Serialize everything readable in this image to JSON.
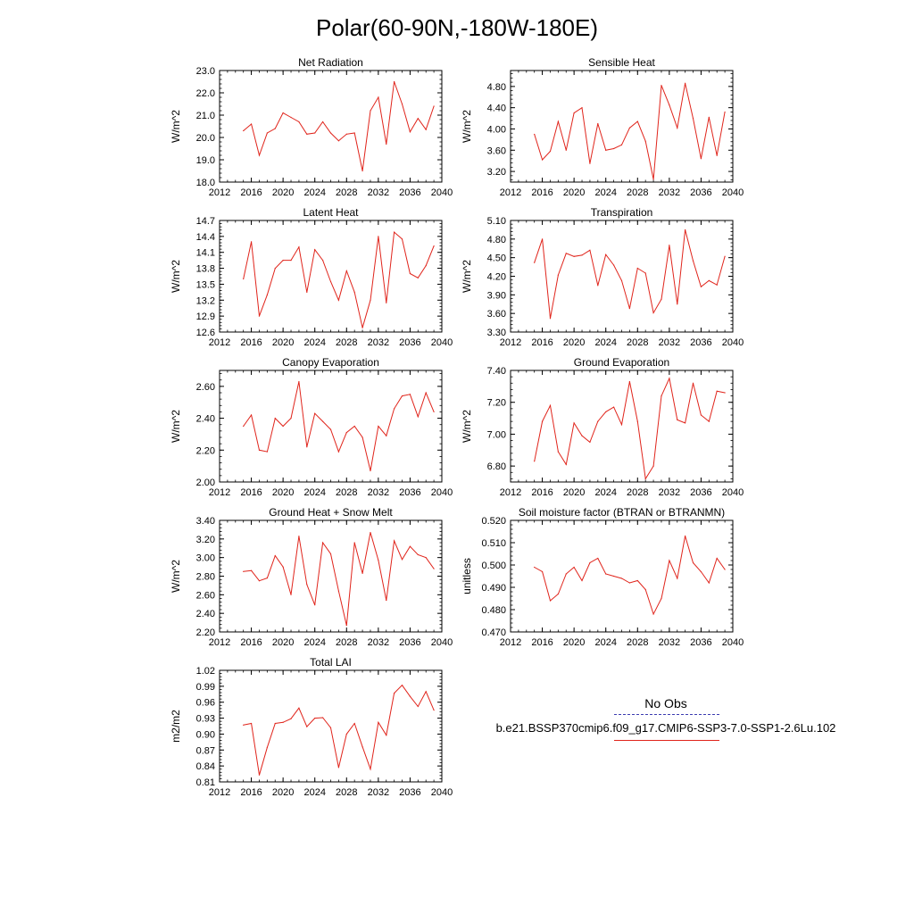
{
  "figure_title": "Polar(60-90N,-180W-180E)",
  "legend": {
    "obs_label": "No Obs",
    "obs_color": "#3b3bb0",
    "run_label": "b.e21.BSSP370cmip6.f09_g17.CMIP6-SSP3-7.0-SSP1-2.6Lu.102",
    "run_color": "#e0241b"
  },
  "chart_data": [
    {
      "type": "line",
      "title": "Net Radiation",
      "ylabel": "W/m^2",
      "xlim": [
        2012,
        2040
      ],
      "ylim": [
        18.0,
        23.0
      ],
      "xticks": [
        "2012",
        "2016",
        "2020",
        "2024",
        "2028",
        "2032",
        "2036",
        "2040"
      ],
      "yticks": [
        "18.0",
        "19.0",
        "20.0",
        "21.0",
        "22.0",
        "23.0"
      ],
      "x": [
        2015,
        2016,
        2017,
        2018,
        2019,
        2020,
        2021,
        2022,
        2023,
        2024,
        2025,
        2026,
        2027,
        2028,
        2029,
        2030,
        2031,
        2032,
        2033,
        2034,
        2035,
        2036,
        2037,
        2038,
        2039
      ],
      "series": [
        {
          "values": [
            20.3,
            20.6,
            19.2,
            20.2,
            20.4,
            21.1,
            20.9,
            20.7,
            20.15,
            20.2,
            20.7,
            20.2,
            19.85,
            20.15,
            20.2,
            18.5,
            21.2,
            21.8,
            19.7,
            22.5,
            21.5,
            20.25,
            20.85,
            20.35,
            21.4
          ]
        }
      ]
    },
    {
      "type": "line",
      "title": "Sensible Heat",
      "ylabel": "W/m^2",
      "xlim": [
        2012,
        2040
      ],
      "ylim": [
        3.0,
        5.1
      ],
      "xticks": [
        "2012",
        "2016",
        "2020",
        "2024",
        "2028",
        "2032",
        "2036",
        "2040"
      ],
      "yticks": [
        "3.20",
        "3.60",
        "4.00",
        "4.40",
        "4.80"
      ],
      "x": [
        2015,
        2016,
        2017,
        2018,
        2019,
        2020,
        2021,
        2022,
        2023,
        2024,
        2025,
        2026,
        2027,
        2028,
        2029,
        2030,
        2031,
        2032,
        2033,
        2034,
        2035,
        2036,
        2037,
        2038,
        2039
      ],
      "series": [
        {
          "values": [
            3.9,
            3.42,
            3.58,
            4.14,
            3.6,
            4.3,
            4.4,
            3.35,
            4.1,
            3.6,
            3.63,
            3.7,
            4.02,
            4.14,
            3.77,
            3.05,
            4.82,
            4.45,
            4.02,
            4.86,
            4.2,
            3.44,
            4.22,
            3.5,
            4.32
          ]
        }
      ]
    },
    {
      "type": "line",
      "title": "Latent Heat",
      "ylabel": "W/m^2",
      "xlim": [
        2012,
        2040
      ],
      "ylim": [
        12.6,
        14.7
      ],
      "xticks": [
        "2012",
        "2016",
        "2020",
        "2024",
        "2028",
        "2032",
        "2036",
        "2040"
      ],
      "yticks": [
        "12.6",
        "12.9",
        "13.2",
        "13.5",
        "13.8",
        "14.1",
        "14.4",
        "14.7"
      ],
      "x": [
        2015,
        2016,
        2017,
        2018,
        2019,
        2020,
        2021,
        2022,
        2023,
        2024,
        2025,
        2026,
        2027,
        2028,
        2029,
        2030,
        2031,
        2032,
        2033,
        2034,
        2035,
        2036,
        2037,
        2038,
        2039
      ],
      "series": [
        {
          "values": [
            13.6,
            14.3,
            12.9,
            13.3,
            13.8,
            13.95,
            13.95,
            14.2,
            13.35,
            14.15,
            13.95,
            13.55,
            13.2,
            13.75,
            13.35,
            12.68,
            13.2,
            14.4,
            13.15,
            14.48,
            14.35,
            13.7,
            13.62,
            13.85,
            14.22
          ]
        }
      ]
    },
    {
      "type": "line",
      "title": "Transpiration",
      "ylabel": "W/m^2",
      "xlim": [
        2012,
        2040
      ],
      "ylim": [
        3.3,
        5.1
      ],
      "xticks": [
        "2012",
        "2016",
        "2020",
        "2024",
        "2028",
        "2032",
        "2036",
        "2040"
      ],
      "yticks": [
        "3.30",
        "3.60",
        "3.90",
        "4.20",
        "4.50",
        "4.80",
        "5.10"
      ],
      "x": [
        2015,
        2016,
        2017,
        2018,
        2019,
        2020,
        2021,
        2022,
        2023,
        2024,
        2025,
        2026,
        2027,
        2028,
        2029,
        2030,
        2031,
        2032,
        2033,
        2034,
        2035,
        2036,
        2037,
        2038,
        2039
      ],
      "series": [
        {
          "values": [
            4.42,
            4.8,
            3.52,
            4.22,
            4.57,
            4.52,
            4.54,
            4.62,
            4.05,
            4.55,
            4.38,
            4.13,
            3.68,
            4.33,
            4.25,
            3.61,
            3.83,
            4.7,
            3.75,
            4.95,
            4.45,
            4.03,
            4.13,
            4.06,
            4.52
          ]
        }
      ]
    },
    {
      "type": "line",
      "title": "Canopy Evaporation",
      "ylabel": "W/m^2",
      "xlim": [
        2012,
        2040
      ],
      "ylim": [
        2.0,
        2.7
      ],
      "xticks": [
        "2012",
        "2016",
        "2020",
        "2024",
        "2028",
        "2032",
        "2036",
        "2040"
      ],
      "yticks": [
        "2.00",
        "2.20",
        "2.40",
        "2.60"
      ],
      "x": [
        2015,
        2016,
        2017,
        2018,
        2019,
        2020,
        2021,
        2022,
        2023,
        2024,
        2025,
        2026,
        2027,
        2028,
        2029,
        2030,
        2031,
        2032,
        2033,
        2034,
        2035,
        2036,
        2037,
        2038,
        2039
      ],
      "series": [
        {
          "values": [
            2.35,
            2.42,
            2.2,
            2.19,
            2.4,
            2.35,
            2.4,
            2.63,
            2.22,
            2.43,
            2.38,
            2.33,
            2.19,
            2.31,
            2.35,
            2.28,
            2.07,
            2.35,
            2.29,
            2.46,
            2.54,
            2.55,
            2.41,
            2.56,
            2.44
          ]
        }
      ]
    },
    {
      "type": "line",
      "title": "Ground Evaporation",
      "ylabel": "W/m^2",
      "xlim": [
        2012,
        2040
      ],
      "ylim": [
        6.7,
        7.4
      ],
      "xticks": [
        "2012",
        "2016",
        "2020",
        "2024",
        "2028",
        "2032",
        "2036",
        "2040"
      ],
      "yticks": [
        "6.80",
        "7.00",
        "7.20",
        "7.40"
      ],
      "x": [
        2015,
        2016,
        2017,
        2018,
        2019,
        2020,
        2021,
        2022,
        2023,
        2024,
        2025,
        2026,
        2027,
        2028,
        2029,
        2030,
        2031,
        2032,
        2033,
        2034,
        2035,
        2036,
        2037,
        2038,
        2039
      ],
      "series": [
        {
          "values": [
            6.83,
            7.08,
            7.18,
            6.89,
            6.81,
            7.07,
            6.99,
            6.95,
            7.08,
            7.14,
            7.17,
            7.06,
            7.33,
            7.08,
            6.72,
            6.8,
            7.24,
            7.35,
            7.09,
            7.07,
            7.32,
            7.12,
            7.08,
            7.27,
            7.26
          ]
        }
      ]
    },
    {
      "type": "line",
      "title": "Ground Heat + Snow Melt",
      "ylabel": "W/m^2",
      "xlim": [
        2012,
        2040
      ],
      "ylim": [
        2.2,
        3.4
      ],
      "xticks": [
        "2012",
        "2016",
        "2020",
        "2024",
        "2028",
        "2032",
        "2036",
        "2040"
      ],
      "yticks": [
        "2.20",
        "2.40",
        "2.60",
        "2.80",
        "3.00",
        "3.20",
        "3.40"
      ],
      "x": [
        2015,
        2016,
        2017,
        2018,
        2019,
        2020,
        2021,
        2022,
        2023,
        2024,
        2025,
        2026,
        2027,
        2028,
        2029,
        2030,
        2031,
        2032,
        2033,
        2034,
        2035,
        2036,
        2037,
        2038,
        2039
      ],
      "series": [
        {
          "values": [
            2.85,
            2.86,
            2.75,
            2.78,
            3.02,
            2.9,
            2.6,
            3.23,
            2.71,
            2.49,
            3.16,
            3.04,
            2.64,
            2.27,
            3.16,
            2.83,
            3.27,
            2.97,
            2.54,
            3.18,
            2.98,
            3.12,
            3.03,
            3.0,
            2.88
          ]
        }
      ]
    },
    {
      "type": "line",
      "title": "Soil moisture factor (BTRAN or BTRANMN)",
      "ylabel": "unitless",
      "xlim": [
        2012,
        2040
      ],
      "ylim": [
        0.47,
        0.52
      ],
      "xticks": [
        "2012",
        "2016",
        "2020",
        "2024",
        "2028",
        "2032",
        "2036",
        "2040"
      ],
      "yticks": [
        "0.470",
        "0.480",
        "0.490",
        "0.500",
        "0.510",
        "0.520"
      ],
      "x": [
        2015,
        2016,
        2017,
        2018,
        2019,
        2020,
        2021,
        2022,
        2023,
        2024,
        2025,
        2026,
        2027,
        2028,
        2029,
        2030,
        2031,
        2032,
        2033,
        2034,
        2035,
        2036,
        2037,
        2038,
        2039
      ],
      "series": [
        {
          "values": [
            0.499,
            0.497,
            0.484,
            0.487,
            0.496,
            0.499,
            0.493,
            0.501,
            0.503,
            0.496,
            0.495,
            0.494,
            0.492,
            0.493,
            0.489,
            0.478,
            0.485,
            0.502,
            0.494,
            0.513,
            0.501,
            0.497,
            0.492,
            0.503,
            0.498
          ]
        }
      ]
    },
    {
      "type": "line",
      "title": "Total LAI",
      "ylabel": "m2/m2",
      "xlim": [
        2012,
        2040
      ],
      "ylim": [
        0.81,
        1.02
      ],
      "xticks": [
        "2012",
        "2016",
        "2020",
        "2024",
        "2028",
        "2032",
        "2036",
        "2040"
      ],
      "yticks": [
        "0.81",
        "0.84",
        "0.87",
        "0.90",
        "0.93",
        "0.96",
        "0.99",
        "1.02"
      ],
      "x": [
        2015,
        2016,
        2017,
        2018,
        2019,
        2020,
        2021,
        2022,
        2023,
        2024,
        2025,
        2026,
        2027,
        2028,
        2029,
        2030,
        2031,
        2032,
        2033,
        2034,
        2035,
        2036,
        2037,
        2038,
        2039
      ],
      "series": [
        {
          "values": [
            0.917,
            0.92,
            0.823,
            0.875,
            0.92,
            0.922,
            0.929,
            0.949,
            0.914,
            0.93,
            0.931,
            0.912,
            0.837,
            0.9,
            0.92,
            0.876,
            0.834,
            0.922,
            0.898,
            0.977,
            0.992,
            0.971,
            0.952,
            0.98,
            0.945
          ]
        }
      ]
    }
  ]
}
